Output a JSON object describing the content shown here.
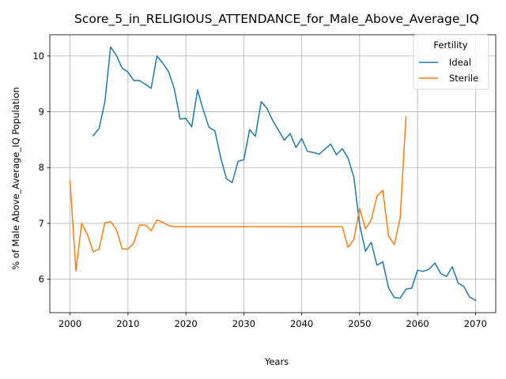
{
  "chart_data": {
    "type": "line",
    "title": "Score_5_in_RELIGIOUS_ATTENDANCE_for_Male_Above_Average_IQ",
    "xlabel": "Years",
    "ylabel": "% of Male Above_Average_IQ Population",
    "xlim": [
      1996.5,
      2073.5
    ],
    "ylim": [
      5.4,
      10.38
    ],
    "xticks": [
      2000,
      2010,
      2020,
      2030,
      2040,
      2050,
      2060,
      2070
    ],
    "yticks": [
      6,
      7,
      8,
      9,
      10
    ],
    "grid": true,
    "legend": {
      "title": "Fertility",
      "placement": "top-right"
    },
    "series": [
      {
        "name": "Ideal",
        "color": "#1f77b4",
        "x": [
          2004,
          2005,
          2006,
          2007,
          2008,
          2009,
          2010,
          2011,
          2012,
          2013,
          2014,
          2015,
          2016,
          2017,
          2018,
          2019,
          2020,
          2021,
          2022,
          2023,
          2024,
          2025,
          2026,
          2027,
          2028,
          2029,
          2030,
          2031,
          2032,
          2033,
          2034,
          2035,
          2036,
          2037,
          2038,
          2039,
          2040,
          2041,
          2042,
          2043,
          2044,
          2045,
          2046,
          2047,
          2048,
          2049,
          2050,
          2051,
          2052,
          2053,
          2054,
          2055,
          2056,
          2057,
          2058,
          2059,
          2060,
          2061,
          2062,
          2063,
          2064,
          2065,
          2066,
          2067,
          2068,
          2069,
          2070
        ],
        "y": [
          8.57,
          8.7,
          9.17,
          10.16,
          10.01,
          9.78,
          9.71,
          9.56,
          9.56,
          9.49,
          9.42,
          10.0,
          9.87,
          9.72,
          9.41,
          8.87,
          8.88,
          8.73,
          9.39,
          9.03,
          8.72,
          8.66,
          8.18,
          7.8,
          7.73,
          8.11,
          8.14,
          8.68,
          8.56,
          9.18,
          9.06,
          8.84,
          8.67,
          8.49,
          8.61,
          8.36,
          8.52,
          8.29,
          8.27,
          8.24,
          8.33,
          8.42,
          8.23,
          8.34,
          8.17,
          7.83,
          6.98,
          6.5,
          6.66,
          6.25,
          6.31,
          5.84,
          5.67,
          5.66,
          5.82,
          5.84,
          6.16,
          6.14,
          6.18,
          6.29,
          6.1,
          6.05,
          6.22,
          5.93,
          5.87,
          5.68,
          5.62
        ]
      },
      {
        "name": "Sterile",
        "color": "#ff7f0e",
        "x": [
          2000,
          2001,
          2002,
          2003,
          2004,
          2005,
          2006,
          2007,
          2008,
          2009,
          2010,
          2011,
          2012,
          2013,
          2014,
          2015,
          2016,
          2017,
          2018,
          2019,
          2020,
          2021,
          2022,
          2023,
          2024,
          2025,
          2026,
          2027,
          2028,
          2029,
          2030,
          2031,
          2032,
          2033,
          2034,
          2035,
          2036,
          2037,
          2038,
          2039,
          2040,
          2041,
          2042,
          2043,
          2044,
          2045,
          2046,
          2047,
          2048,
          2049,
          2050,
          2051,
          2052,
          2053,
          2054,
          2055,
          2056,
          2057,
          2058
        ],
        "y": [
          7.76,
          6.15,
          7.0,
          6.8,
          6.49,
          6.54,
          7.01,
          7.03,
          6.89,
          6.54,
          6.54,
          6.65,
          6.97,
          6.97,
          6.87,
          7.06,
          7.02,
          6.96,
          6.94,
          6.94,
          6.94,
          6.94,
          6.94,
          6.94,
          6.94,
          6.94,
          6.94,
          6.94,
          6.94,
          6.94,
          6.94,
          6.94,
          6.94,
          6.94,
          6.94,
          6.94,
          6.94,
          6.94,
          6.94,
          6.94,
          6.94,
          6.94,
          6.94,
          6.94,
          6.94,
          6.94,
          6.94,
          6.94,
          6.57,
          6.71,
          7.27,
          6.9,
          7.06,
          7.49,
          7.59,
          6.77,
          6.62,
          7.1,
          8.91
        ]
      }
    ]
  }
}
